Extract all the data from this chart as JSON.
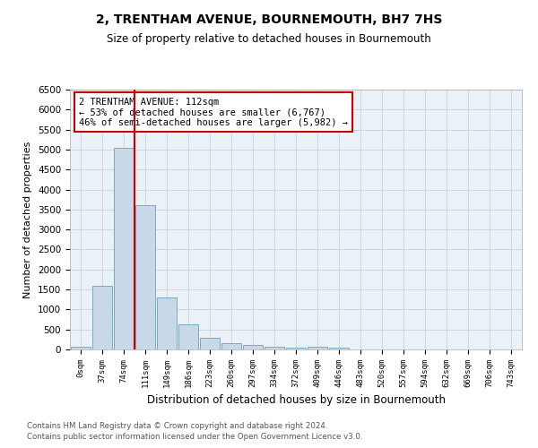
{
  "title": "2, TRENTHAM AVENUE, BOURNEMOUTH, BH7 7HS",
  "subtitle": "Size of property relative to detached houses in Bournemouth",
  "xlabel": "Distribution of detached houses by size in Bournemouth",
  "ylabel": "Number of detached properties",
  "footnote1": "Contains HM Land Registry data © Crown copyright and database right 2024.",
  "footnote2": "Contains public sector information licensed under the Open Government Licence v3.0.",
  "bar_labels": [
    "0sqm",
    "37sqm",
    "74sqm",
    "111sqm",
    "149sqm",
    "186sqm",
    "223sqm",
    "260sqm",
    "297sqm",
    "334sqm",
    "372sqm",
    "409sqm",
    "446sqm",
    "483sqm",
    "520sqm",
    "557sqm",
    "594sqm",
    "632sqm",
    "669sqm",
    "706sqm",
    "743sqm"
  ],
  "bar_values": [
    75,
    1600,
    5050,
    3600,
    1300,
    620,
    290,
    155,
    120,
    75,
    45,
    60,
    55,
    0,
    0,
    0,
    0,
    0,
    0,
    0,
    0
  ],
  "bar_color": "#c8d8e8",
  "bar_edge_color": "#7aaac8",
  "vline_color": "#cc0000",
  "annotation_text": "2 TRENTHAM AVENUE: 112sqm\n← 53% of detached houses are smaller (6,767)\n46% of semi-detached houses are larger (5,982) →",
  "annotation_box_color": "#cc0000",
  "ylim": [
    0,
    6500
  ],
  "yticks": [
    0,
    500,
    1000,
    1500,
    2000,
    2500,
    3000,
    3500,
    4000,
    4500,
    5000,
    5500,
    6000,
    6500
  ]
}
